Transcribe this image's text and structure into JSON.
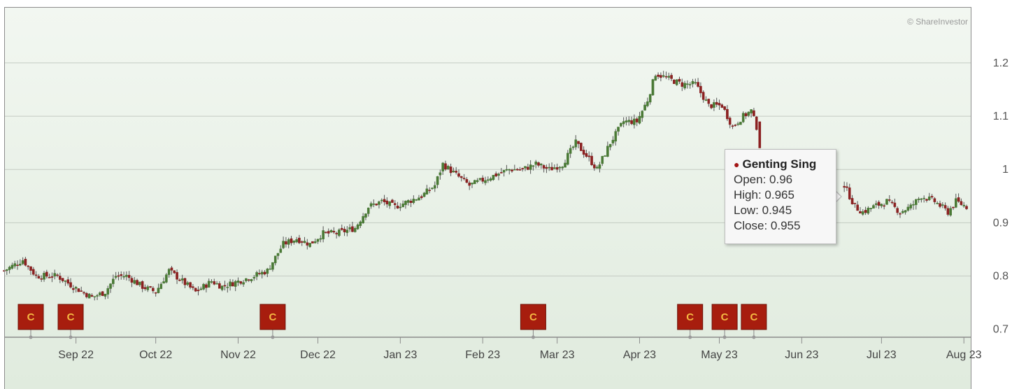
{
  "watermark": "© ShareInvestor",
  "chart_data": {
    "type": "candlestick",
    "series_name": "Genting Sing",
    "y_ticks": [
      0.7,
      0.8,
      0.9,
      1,
      1.1,
      1.2
    ],
    "y_tick_labels": [
      "0.7",
      "0.8",
      "0.9",
      "1",
      "1.1",
      "1.2"
    ],
    "ylim": [
      0.685,
      1.305
    ],
    "x_tick_labels": [
      "Sep 22",
      "Oct 22",
      "Nov 22",
      "Dec 22",
      "Jan 23",
      "Feb 23",
      "Mar 23",
      "Apr 23",
      "May 23",
      "Jun 23",
      "Jul 23",
      "Aug 23"
    ],
    "x_tick_days": [
      27,
      57,
      88,
      118,
      149,
      180,
      208,
      239,
      269,
      300,
      330,
      361
    ],
    "x_range_days": [
      0,
      362
    ],
    "grid": true,
    "close_path": [
      [
        0,
        0.81
      ],
      [
        7,
        0.83
      ],
      [
        12,
        0.8
      ],
      [
        20,
        0.8
      ],
      [
        26,
        0.78
      ],
      [
        33,
        0.76
      ],
      [
        38,
        0.77
      ],
      [
        42,
        0.8
      ],
      [
        46,
        0.8
      ],
      [
        52,
        0.78
      ],
      [
        57,
        0.77
      ],
      [
        62,
        0.81
      ],
      [
        67,
        0.79
      ],
      [
        72,
        0.77
      ],
      [
        78,
        0.79
      ],
      [
        82,
        0.78
      ],
      [
        88,
        0.79
      ],
      [
        94,
        0.8
      ],
      [
        99,
        0.81
      ],
      [
        105,
        0.86
      ],
      [
        110,
        0.87
      ],
      [
        115,
        0.86
      ],
      [
        120,
        0.88
      ],
      [
        125,
        0.88
      ],
      [
        132,
        0.89
      ],
      [
        137,
        0.93
      ],
      [
        142,
        0.94
      ],
      [
        147,
        0.93
      ],
      [
        152,
        0.94
      ],
      [
        157,
        0.95
      ],
      [
        162,
        0.97
      ],
      [
        165,
        1.01
      ],
      [
        170,
        0.99
      ],
      [
        175,
        0.97
      ],
      [
        180,
        0.98
      ],
      [
        185,
        0.99
      ],
      [
        190,
        1.0
      ],
      [
        195,
        1.0
      ],
      [
        200,
        1.01
      ],
      [
        205,
        1.0
      ],
      [
        210,
        1.01
      ],
      [
        215,
        1.05
      ],
      [
        220,
        1.02
      ],
      [
        223,
        1.0
      ],
      [
        228,
        1.05
      ],
      [
        233,
        1.09
      ],
      [
        238,
        1.09
      ],
      [
        242,
        1.13
      ],
      [
        245,
        1.18
      ],
      [
        250,
        1.17
      ],
      [
        255,
        1.16
      ],
      [
        260,
        1.16
      ],
      [
        265,
        1.12
      ],
      [
        270,
        1.12
      ],
      [
        274,
        1.08
      ],
      [
        278,
        1.1
      ],
      [
        281,
        1.11
      ],
      [
        283,
        1.08
      ]
    ],
    "close_path_2": [
      [
        316,
        0.97
      ],
      [
        320,
        0.93
      ],
      [
        323,
        0.92
      ],
      [
        327,
        0.93
      ],
      [
        332,
        0.94
      ],
      [
        337,
        0.92
      ],
      [
        341,
        0.93
      ],
      [
        345,
        0.95
      ],
      [
        350,
        0.94
      ],
      [
        355,
        0.92
      ],
      [
        358,
        0.94
      ],
      [
        362,
        0.93
      ]
    ],
    "corporate_action_markers": [
      {
        "label": "C",
        "day": 10
      },
      {
        "label": "C",
        "day": 25
      },
      {
        "label": "C",
        "day": 101
      },
      {
        "label": "C",
        "day": 199
      },
      {
        "label": "C",
        "day": 258
      },
      {
        "label": "C",
        "day": 271
      },
      {
        "label": "C",
        "day": 282
      }
    ],
    "tooltip": {
      "title": "Genting Sing",
      "open_text": "Open: 0.96",
      "high_text": "High: 0.965",
      "low_text": "Low: 0.945",
      "close_text": "Close: 0.955",
      "open": 0.96,
      "high": 0.965,
      "low": 0.945,
      "close": 0.955
    },
    "colors": {
      "up": "#4a7a36",
      "down": "#8b2121",
      "marker_fill": "#a71d0e",
      "marker_text": "#f4b942",
      "background_top": "#f1f6f0",
      "background_bottom": "#e2ece0"
    }
  }
}
